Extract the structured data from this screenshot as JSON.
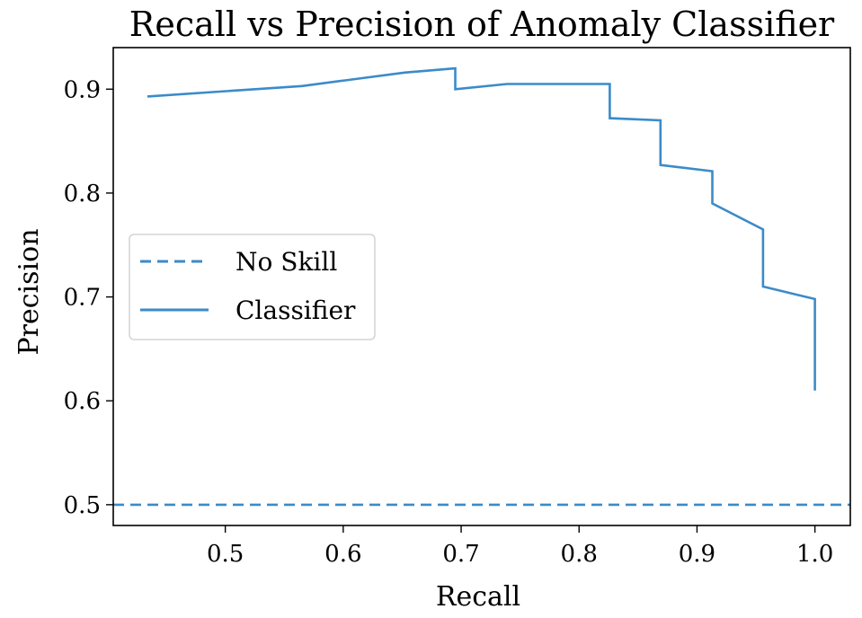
{
  "chart_data": {
    "type": "line",
    "title": "Recall vs Precision of Anomaly Classifier",
    "xlabel": "Recall",
    "ylabel": "Precision",
    "xlim": [
      0.405,
      1.03
    ],
    "ylim": [
      0.48,
      0.94
    ],
    "xticks": [
      0.5,
      0.6,
      0.7,
      0.8,
      0.9,
      1.0
    ],
    "xtick_labels": [
      "0.5",
      "0.6",
      "0.7",
      "0.8",
      "0.9",
      "1.0"
    ],
    "yticks": [
      0.5,
      0.6,
      0.7,
      0.8,
      0.9
    ],
    "ytick_labels": [
      "0.5",
      "0.6",
      "0.7",
      "0.8",
      "0.9"
    ],
    "grid": false,
    "legend_position": "center-left",
    "series": [
      {
        "name": "No Skill",
        "style": "dashed",
        "color": "#3b8bc9",
        "x": [
          0.405,
          1.03
        ],
        "y": [
          0.5,
          0.5
        ]
      },
      {
        "name": "Classifier",
        "style": "solid",
        "color": "#3b8bc9",
        "x": [
          0.434,
          0.565,
          0.652,
          0.695,
          0.695,
          0.739,
          0.826,
          0.826,
          0.869,
          0.869,
          0.913,
          0.913,
          0.956,
          0.956,
          1.0,
          1.0
        ],
        "y": [
          0.893,
          0.903,
          0.916,
          0.92,
          0.9,
          0.905,
          0.905,
          0.872,
          0.87,
          0.827,
          0.821,
          0.79,
          0.765,
          0.71,
          0.698,
          0.61
        ]
      }
    ]
  }
}
